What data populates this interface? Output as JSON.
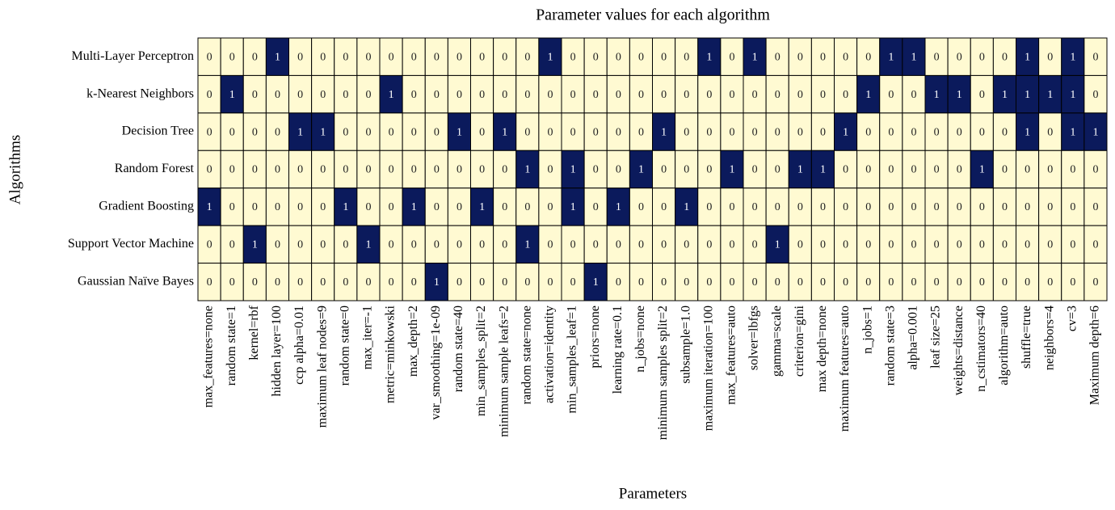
{
  "chart_data": {
    "type": "heatmap",
    "title": "Parameter values for each algorithm",
    "xlabel": "Parameters",
    "ylabel": "Algorithms",
    "x_categories": [
      "max_features=none",
      "random state=1",
      "kernel=rbf",
      "hidden layer=100",
      "ccp alpha=0.01",
      "maximum leaf nodes=9",
      "random state=0",
      "max_iter=-1",
      "metric=minkowski",
      "max_depth=2",
      "var_smoothing=1e-09",
      "random state=40",
      "min_samples_split=2",
      "minimum sample leafs=2",
      "random state=none",
      "activation=identity",
      "min_samples_leaf=1",
      "priors=none",
      "learning rate=0.1",
      "n_jobs=none",
      "minimum samples split=2",
      "subsample=1.0",
      "maximum iteration=100",
      "max_features=auto",
      "solver=lbfgs",
      "gamma=scale",
      "criterion=gini",
      "max depth=none",
      "maximum features=auto",
      "n_jobs=1",
      "random state=3",
      "alpha=0.001",
      "leaf size=25",
      "weights=distance",
      "n_cstimators=40",
      "algorithm=auto",
      "shuffle=true",
      "neighbors=4",
      "cv=3",
      "Maximum depth=6"
    ],
    "y_categories": [
      "Multi-Layer Perceptron",
      "k-Nearest Neighbors",
      "Decision Tree",
      "Random Forest",
      "Gradient Boosting",
      "Support Vector Machine",
      "Gaussian Naïve Bayes"
    ],
    "values": [
      [
        0,
        0,
        0,
        1,
        0,
        0,
        0,
        0,
        0,
        0,
        0,
        0,
        0,
        0,
        0,
        1,
        0,
        0,
        0,
        0,
        0,
        0,
        1,
        0,
        1,
        0,
        0,
        0,
        0,
        0,
        1,
        1,
        0,
        0,
        0,
        0,
        1,
        0,
        1,
        0
      ],
      [
        0,
        1,
        0,
        0,
        0,
        0,
        0,
        0,
        1,
        0,
        0,
        0,
        0,
        0,
        0,
        0,
        0,
        0,
        0,
        0,
        0,
        0,
        0,
        0,
        0,
        0,
        0,
        0,
        0,
        1,
        0,
        0,
        1,
        1,
        0,
        1,
        1,
        1,
        1,
        0
      ],
      [
        0,
        0,
        0,
        0,
        1,
        1,
        0,
        0,
        0,
        0,
        0,
        1,
        0,
        1,
        0,
        0,
        0,
        0,
        0,
        0,
        1,
        0,
        0,
        0,
        0,
        0,
        0,
        0,
        1,
        0,
        0,
        0,
        0,
        0,
        0,
        0,
        1,
        0,
        1,
        1
      ],
      [
        0,
        0,
        0,
        0,
        0,
        0,
        0,
        0,
        0,
        0,
        0,
        0,
        0,
        0,
        1,
        0,
        1,
        0,
        0,
        1,
        0,
        0,
        0,
        1,
        0,
        0,
        1,
        1,
        0,
        0,
        0,
        0,
        0,
        0,
        1,
        0,
        0,
        0,
        0,
        0
      ],
      [
        1,
        0,
        0,
        0,
        0,
        0,
        1,
        0,
        0,
        1,
        0,
        0,
        1,
        0,
        0,
        0,
        1,
        0,
        1,
        0,
        0,
        1,
        0,
        0,
        0,
        0,
        0,
        0,
        0,
        0,
        0,
        0,
        0,
        0,
        0,
        0,
        0,
        0,
        0,
        0
      ],
      [
        0,
        0,
        1,
        0,
        0,
        0,
        0,
        1,
        0,
        0,
        0,
        0,
        0,
        0,
        1,
        0,
        0,
        0,
        0,
        0,
        0,
        0,
        0,
        0,
        0,
        1,
        0,
        0,
        0,
        0,
        0,
        0,
        0,
        0,
        0,
        0,
        0,
        0,
        0,
        0
      ],
      [
        0,
        0,
        0,
        0,
        0,
        0,
        0,
        0,
        0,
        0,
        1,
        0,
        0,
        0,
        0,
        0,
        0,
        1,
        0,
        0,
        0,
        0,
        0,
        0,
        0,
        0,
        0,
        0,
        0,
        0,
        0,
        0,
        0,
        0,
        0,
        0,
        0,
        0,
        0,
        0
      ]
    ],
    "colors": [
      "#fffad2",
      "#0b1a5c"
    ],
    "text_colors": [
      "#222",
      "#fff"
    ]
  }
}
